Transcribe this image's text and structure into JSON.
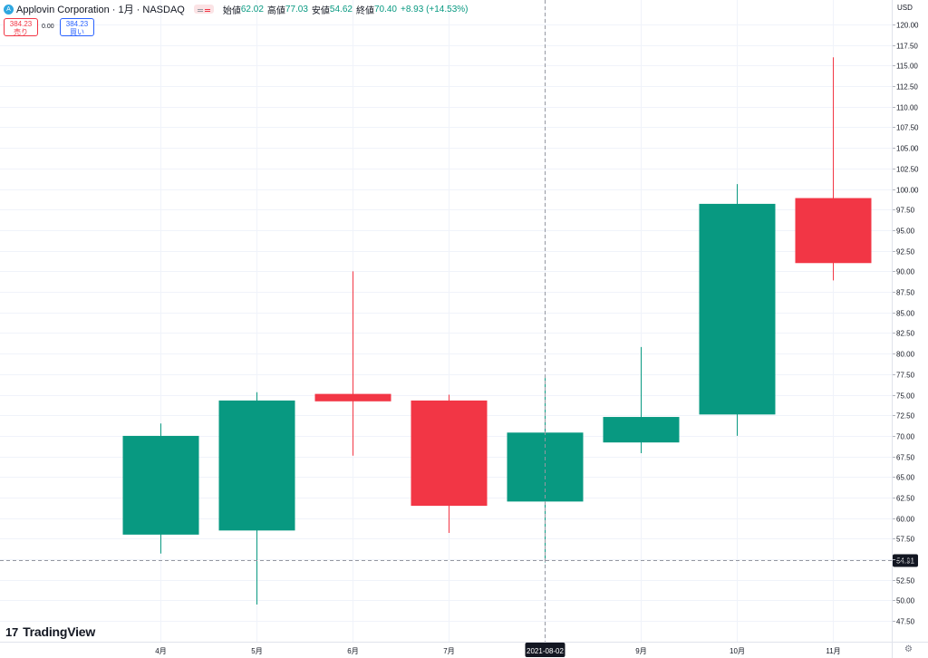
{
  "legend": {
    "logo_letter": "A",
    "symbol": "Applovin Corporation · 1月 · NASDAQ",
    "open_label": "始値",
    "open": "62.02",
    "high_label": "高値",
    "high": "77.03",
    "low_label": "安値",
    "low": "54.62",
    "close_label": "終値",
    "close": "70.40",
    "change": "+8.93 (+14.53%)"
  },
  "trade": {
    "sell_price": "384.23",
    "sell_label": "売り",
    "spread": "0.00",
    "buy_price": "384.23",
    "buy_label": "買い"
  },
  "branding": {
    "logo_mark": "17",
    "name": "TradingView"
  },
  "axis": {
    "currency": "USD",
    "settings_icon": "gear-icon"
  },
  "colors": {
    "up": "#089981",
    "down": "#f23645",
    "grid": "#f0f3fa",
    "axis_text": "#131722"
  },
  "crosshair": {
    "date_label": "2021-08-02",
    "price_label": "54.91",
    "price": 54.91,
    "category_index": 4
  },
  "chart_data": {
    "type": "candlestick",
    "categories": [
      "4月",
      "5月",
      "6月",
      "7月",
      "8月",
      "9月",
      "10月",
      "11月"
    ],
    "x_tick_labels": [
      "4月",
      "5月",
      "6月",
      "7月",
      "",
      "9月",
      "10月",
      "11月"
    ],
    "ohlc": [
      {
        "open": 58.0,
        "high": 71.5,
        "low": 55.7,
        "close": 70.0
      },
      {
        "open": 58.5,
        "high": 75.3,
        "low": 49.5,
        "close": 74.3
      },
      {
        "open": 75.1,
        "high": 90.0,
        "low": 67.6,
        "close": 74.2
      },
      {
        "open": 74.3,
        "high": 75.0,
        "low": 58.2,
        "close": 61.5
      },
      {
        "open": 62.02,
        "high": 77.03,
        "low": 54.62,
        "close": 70.4
      },
      {
        "open": 69.2,
        "high": 80.8,
        "low": 67.9,
        "close": 72.3
      },
      {
        "open": 72.6,
        "high": 100.6,
        "low": 70.0,
        "close": 98.2
      },
      {
        "open": 98.9,
        "high": 116.0,
        "low": 88.9,
        "close": 91.0
      }
    ],
    "y_ticks": [
      47.5,
      50,
      52.5,
      55,
      57.5,
      60,
      62.5,
      65,
      67.5,
      70,
      72.5,
      75,
      77.5,
      80,
      82.5,
      85,
      87.5,
      90,
      92.5,
      95,
      97.5,
      100,
      102.5,
      105,
      107.5,
      110,
      112.5,
      115,
      117.5,
      120
    ],
    "ylim": [
      46.75,
      120.55
    ],
    "grid": true
  }
}
